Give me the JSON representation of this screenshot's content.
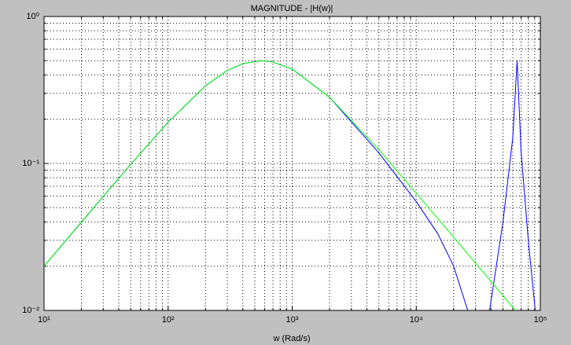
{
  "chart_data": {
    "type": "line",
    "title": "MAGNITUDE - |H(w)|",
    "x_label": "w (Rad/s)",
    "xscale": "log",
    "yscale": "log",
    "grid": true,
    "minor_grid": true,
    "xlim": [
      10,
      100000
    ],
    "ylim": [
      0.01,
      1
    ],
    "xticks": [
      {
        "value": 10,
        "label": "10¹"
      },
      {
        "value": 100,
        "label": "10²"
      },
      {
        "value": 1000,
        "label": "10³"
      },
      {
        "value": 10000,
        "label": "10⁴"
      },
      {
        "value": 100000,
        "label": "10⁵"
      }
    ],
    "yticks": [
      {
        "value": 0.01,
        "label": "10⁻²"
      },
      {
        "value": 0.1,
        "label": "10⁻¹"
      },
      {
        "value": 1,
        "label": "10⁰"
      }
    ],
    "series": [
      {
        "color": "#0000ff",
        "x": [
          10,
          20,
          50,
          100,
          200,
          300,
          400,
          561,
          700,
          1000,
          2000,
          5000,
          10000,
          15000,
          20000,
          26000,
          null,
          39000,
          50000,
          60000,
          65000,
          70000,
          80000,
          91000
        ],
        "values": [
          0.02,
          0.0399,
          0.0988,
          0.191,
          0.338,
          0.43,
          0.478,
          0.5,
          0.49,
          0.439,
          0.282,
          0.118,
          0.055,
          0.033,
          0.02,
          0.01,
          null,
          0.01,
          0.04,
          0.15,
          0.5,
          0.12,
          0.03,
          0.01
        ]
      },
      {
        "color": "#00ff00",
        "x": [
          10,
          20,
          50,
          100,
          200,
          300,
          400,
          561,
          700,
          1000,
          2000,
          5000,
          10000,
          20000,
          50000,
          63000
        ],
        "values": [
          0.02,
          0.0399,
          0.0988,
          0.191,
          0.338,
          0.43,
          0.478,
          0.5,
          0.49,
          0.439,
          0.282,
          0.124,
          0.0627,
          0.0315,
          0.0126,
          0.01
        ]
      }
    ]
  }
}
